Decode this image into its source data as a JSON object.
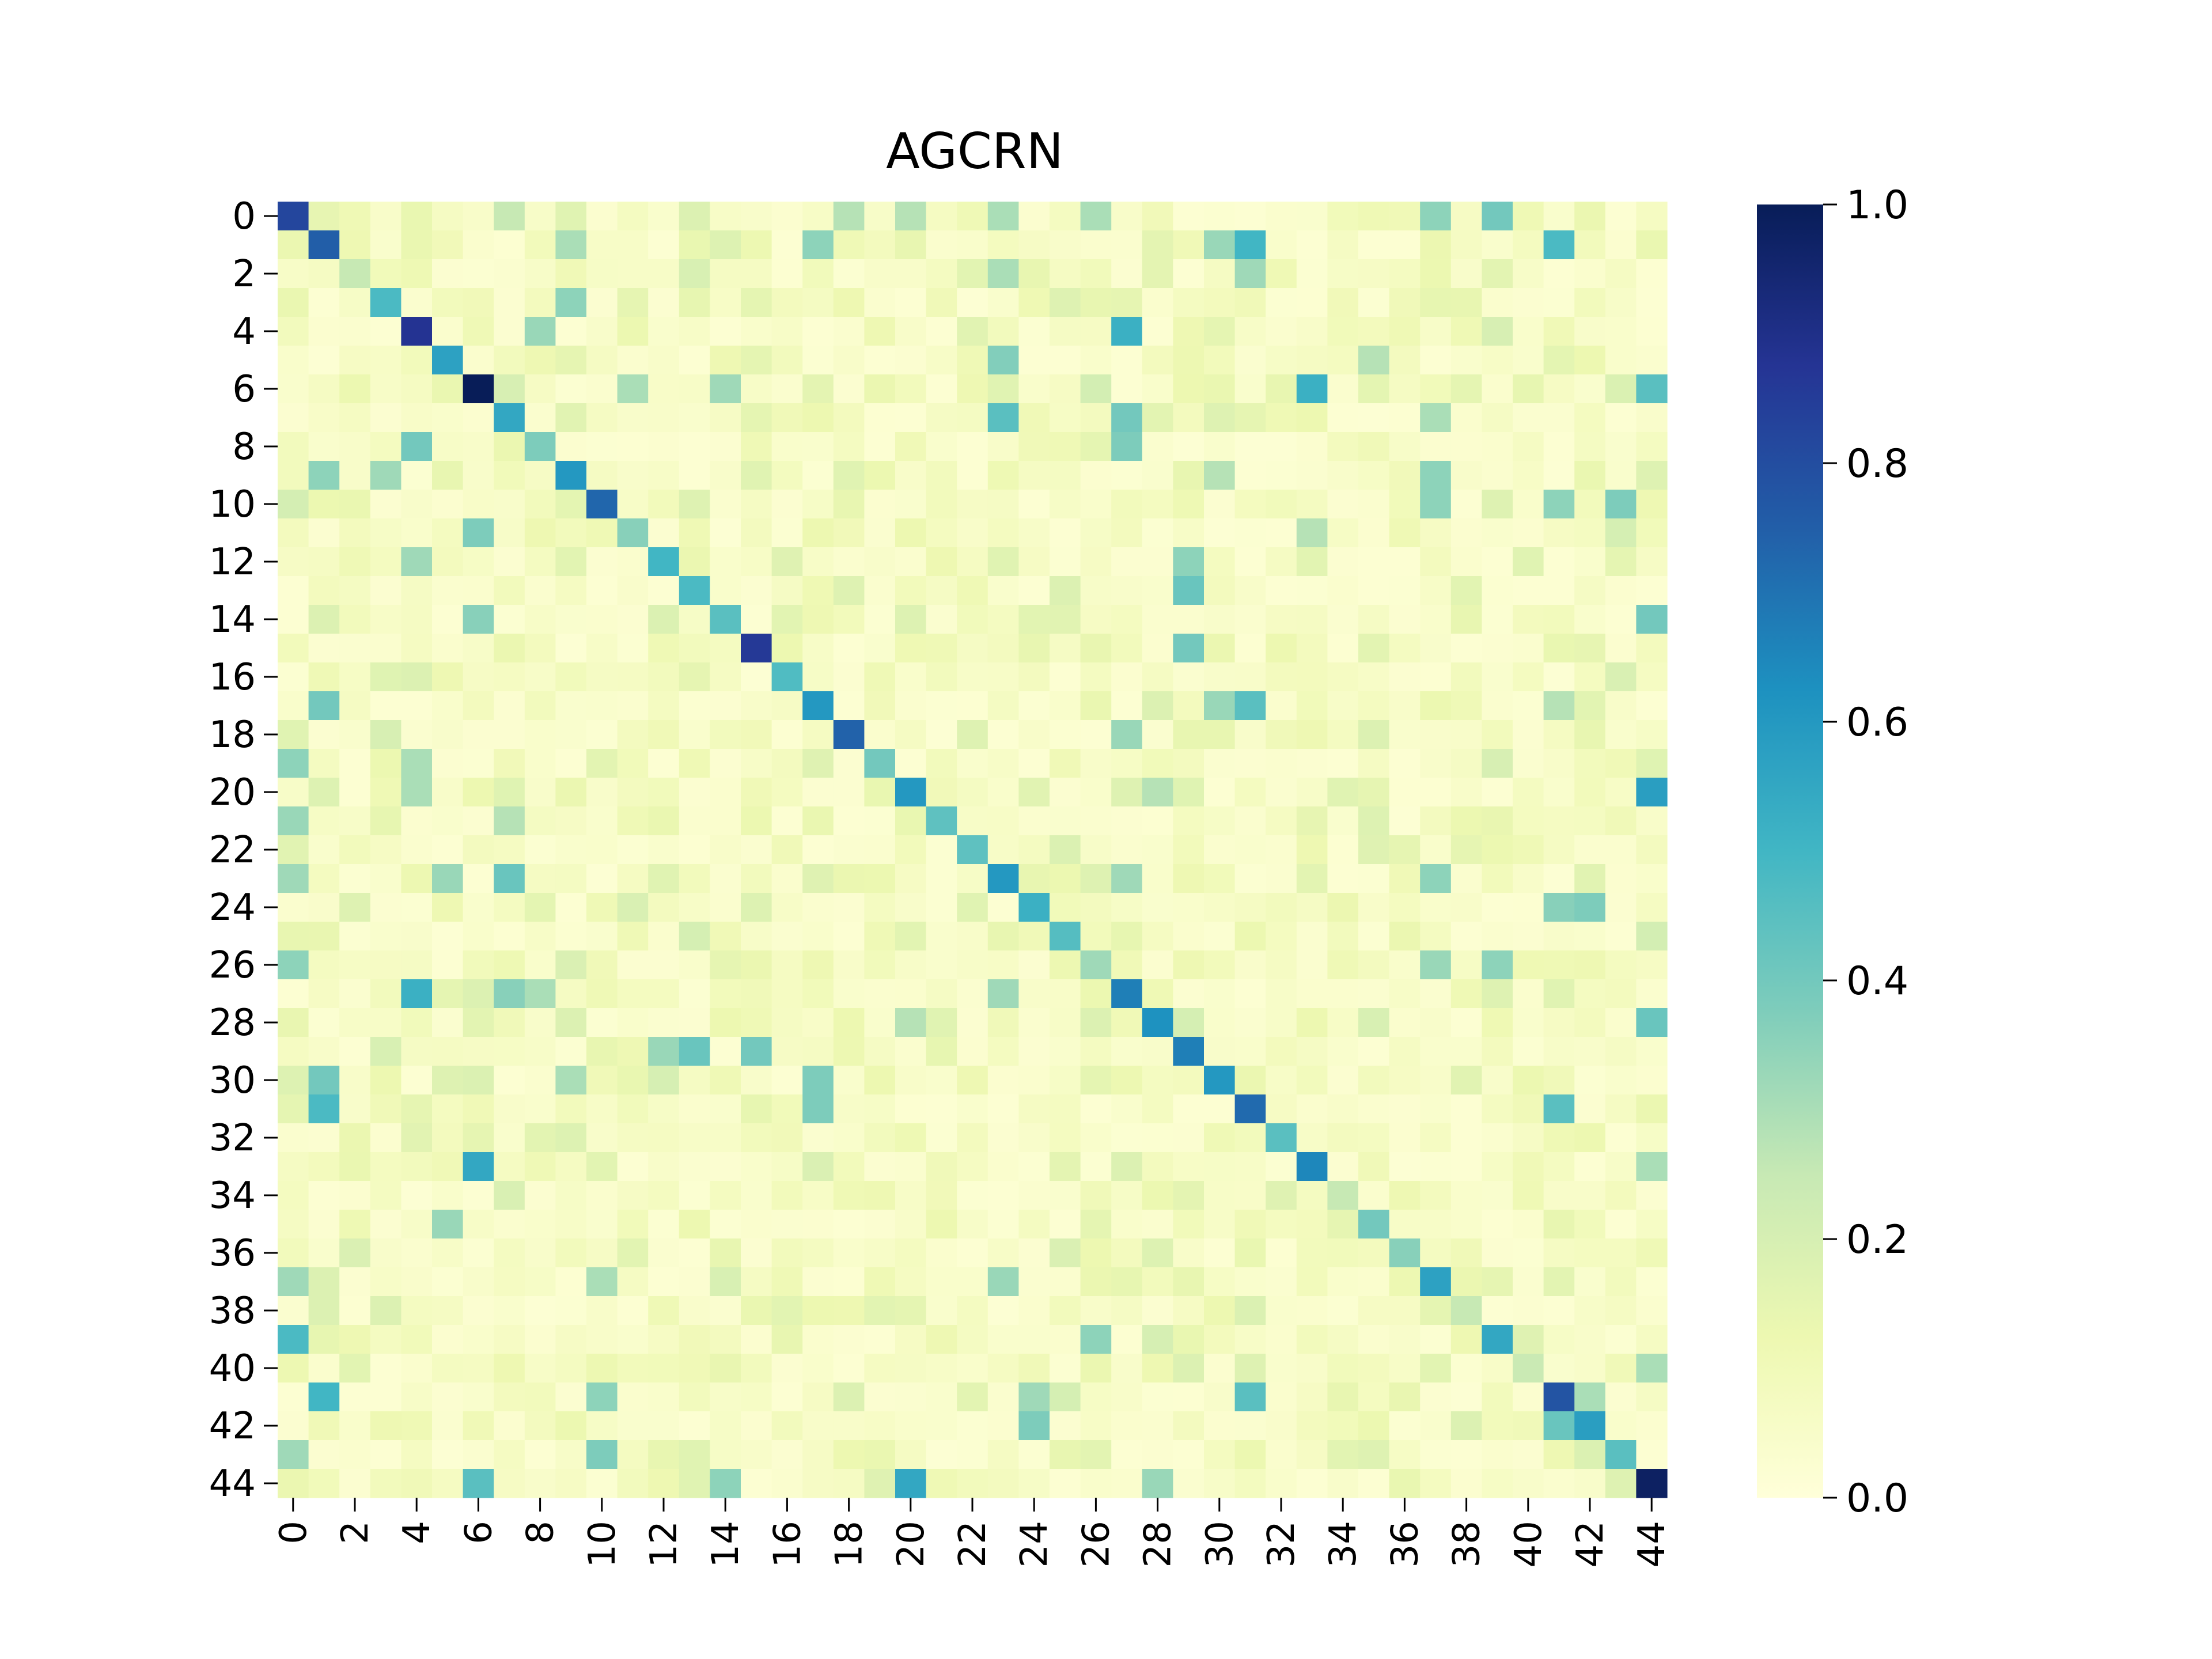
{
  "chart_data": {
    "type": "heatmap",
    "title": "AGCRN",
    "xlabel": "",
    "ylabel": "",
    "n": 45,
    "x_tick_labels": [
      "0",
      "2",
      "4",
      "6",
      "8",
      "10",
      "12",
      "14",
      "16",
      "18",
      "20",
      "22",
      "24",
      "26",
      "28",
      "30",
      "32",
      "34",
      "36",
      "38",
      "40",
      "42",
      "44"
    ],
    "y_tick_labels": [
      "0",
      "2",
      "4",
      "6",
      "8",
      "10",
      "12",
      "14",
      "16",
      "18",
      "20",
      "22",
      "24",
      "26",
      "28",
      "30",
      "32",
      "34",
      "36",
      "38",
      "40",
      "42",
      "44"
    ],
    "colorbar": {
      "min": 0.0,
      "max": 1.0,
      "tick_labels": [
        "0.0",
        "0.2",
        "0.4",
        "0.6",
        "0.8",
        "1.0"
      ],
      "colormap": "YlGnBu",
      "stops": [
        "#ffffd9",
        "#edf8b1",
        "#c7e9b4",
        "#7fcdbb",
        "#41b6c4",
        "#1d91c0",
        "#225ea8",
        "#253494",
        "#081d58"
      ]
    },
    "diagonal": [
      0.82,
      0.75,
      0.25,
      0.48,
      0.88,
      0.57,
      1.0,
      0.55,
      0.38,
      0.6,
      0.73,
      0.36,
      0.5,
      0.48,
      0.45,
      0.86,
      0.47,
      0.6,
      0.74,
      0.4,
      0.6,
      0.44,
      0.44,
      0.6,
      0.52,
      0.46,
      0.32,
      0.67,
      0.62,
      0.67,
      0.6,
      0.72,
      0.45,
      0.65,
      0.25,
      0.4,
      0.36,
      0.57,
      0.25,
      0.55,
      0.24,
      0.78,
      0.58,
      0.45,
      0.98
    ],
    "off_diagonal": [
      {
        "row": 0,
        "col": 7,
        "value": 0.25
      },
      {
        "row": 0,
        "col": 18,
        "value": 0.28
      },
      {
        "row": 0,
        "col": 20,
        "value": 0.28
      },
      {
        "row": 0,
        "col": 23,
        "value": 0.3
      },
      {
        "row": 0,
        "col": 26,
        "value": 0.3
      },
      {
        "row": 0,
        "col": 37,
        "value": 0.35
      },
      {
        "row": 0,
        "col": 39,
        "value": 0.4
      },
      {
        "row": 1,
        "col": 9,
        "value": 0.3
      },
      {
        "row": 1,
        "col": 17,
        "value": 0.35
      },
      {
        "row": 1,
        "col": 30,
        "value": 0.33
      },
      {
        "row": 1,
        "col": 31,
        "value": 0.5
      },
      {
        "row": 1,
        "col": 41,
        "value": 0.48
      },
      {
        "row": 2,
        "col": 31,
        "value": 0.32
      },
      {
        "row": 2,
        "col": 23,
        "value": 0.3
      },
      {
        "row": 3,
        "col": 9,
        "value": 0.35
      },
      {
        "row": 4,
        "col": 8,
        "value": 0.33
      },
      {
        "row": 4,
        "col": 27,
        "value": 0.52
      },
      {
        "row": 5,
        "col": 23,
        "value": 0.37
      },
      {
        "row": 5,
        "col": 35,
        "value": 0.28
      },
      {
        "row": 6,
        "col": 11,
        "value": 0.3
      },
      {
        "row": 6,
        "col": 14,
        "value": 0.32
      },
      {
        "row": 6,
        "col": 33,
        "value": 0.52
      },
      {
        "row": 6,
        "col": 44,
        "value": 0.45
      },
      {
        "row": 7,
        "col": 23,
        "value": 0.45
      },
      {
        "row": 7,
        "col": 27,
        "value": 0.4
      },
      {
        "row": 7,
        "col": 37,
        "value": 0.3
      },
      {
        "row": 8,
        "col": 4,
        "value": 0.4
      },
      {
        "row": 8,
        "col": 27,
        "value": 0.38
      },
      {
        "row": 9,
        "col": 1,
        "value": 0.35
      },
      {
        "row": 9,
        "col": 3,
        "value": 0.32
      },
      {
        "row": 9,
        "col": 30,
        "value": 0.28
      },
      {
        "row": 9,
        "col": 37,
        "value": 0.35
      },
      {
        "row": 10,
        "col": 37,
        "value": 0.35
      },
      {
        "row": 10,
        "col": 41,
        "value": 0.35
      },
      {
        "row": 10,
        "col": 43,
        "value": 0.38
      },
      {
        "row": 11,
        "col": 6,
        "value": 0.38
      },
      {
        "row": 11,
        "col": 33,
        "value": 0.28
      },
      {
        "row": 12,
        "col": 4,
        "value": 0.32
      },
      {
        "row": 12,
        "col": 29,
        "value": 0.35
      },
      {
        "row": 13,
        "col": 29,
        "value": 0.42
      },
      {
        "row": 14,
        "col": 6,
        "value": 0.36
      },
      {
        "row": 14,
        "col": 44,
        "value": 0.4
      },
      {
        "row": 15,
        "col": 29,
        "value": 0.4
      },
      {
        "row": 17,
        "col": 1,
        "value": 0.4
      },
      {
        "row": 17,
        "col": 30,
        "value": 0.33
      },
      {
        "row": 17,
        "col": 31,
        "value": 0.45
      },
      {
        "row": 17,
        "col": 41,
        "value": 0.28
      },
      {
        "row": 18,
        "col": 27,
        "value": 0.33
      },
      {
        "row": 19,
        "col": 0,
        "value": 0.35
      },
      {
        "row": 19,
        "col": 4,
        "value": 0.3
      },
      {
        "row": 20,
        "col": 4,
        "value": 0.3
      },
      {
        "row": 20,
        "col": 28,
        "value": 0.28
      },
      {
        "row": 20,
        "col": 44,
        "value": 0.58
      },
      {
        "row": 21,
        "col": 0,
        "value": 0.33
      },
      {
        "row": 21,
        "col": 7,
        "value": 0.28
      },
      {
        "row": 23,
        "col": 0,
        "value": 0.32
      },
      {
        "row": 23,
        "col": 5,
        "value": 0.33
      },
      {
        "row": 23,
        "col": 7,
        "value": 0.42
      },
      {
        "row": 23,
        "col": 27,
        "value": 0.32
      },
      {
        "row": 23,
        "col": 37,
        "value": 0.35
      },
      {
        "row": 24,
        "col": 41,
        "value": 0.36
      },
      {
        "row": 24,
        "col": 42,
        "value": 0.38
      },
      {
        "row": 26,
        "col": 0,
        "value": 0.35
      },
      {
        "row": 26,
        "col": 37,
        "value": 0.33
      },
      {
        "row": 26,
        "col": 39,
        "value": 0.35
      },
      {
        "row": 27,
        "col": 4,
        "value": 0.52
      },
      {
        "row": 27,
        "col": 7,
        "value": 0.36
      },
      {
        "row": 27,
        "col": 8,
        "value": 0.3
      },
      {
        "row": 27,
        "col": 23,
        "value": 0.32
      },
      {
        "row": 28,
        "col": 20,
        "value": 0.28
      },
      {
        "row": 28,
        "col": 44,
        "value": 0.42
      },
      {
        "row": 29,
        "col": 12,
        "value": 0.33
      },
      {
        "row": 29,
        "col": 13,
        "value": 0.42
      },
      {
        "row": 29,
        "col": 15,
        "value": 0.4
      },
      {
        "row": 30,
        "col": 1,
        "value": 0.4
      },
      {
        "row": 30,
        "col": 9,
        "value": 0.3
      },
      {
        "row": 30,
        "col": 17,
        "value": 0.38
      },
      {
        "row": 31,
        "col": 1,
        "value": 0.48
      },
      {
        "row": 31,
        "col": 17,
        "value": 0.38
      },
      {
        "row": 31,
        "col": 41,
        "value": 0.45
      },
      {
        "row": 33,
        "col": 6,
        "value": 0.55
      },
      {
        "row": 33,
        "col": 44,
        "value": 0.3
      },
      {
        "row": 35,
        "col": 5,
        "value": 0.33
      },
      {
        "row": 37,
        "col": 0,
        "value": 0.32
      },
      {
        "row": 37,
        "col": 10,
        "value": 0.3
      },
      {
        "row": 37,
        "col": 23,
        "value": 0.33
      },
      {
        "row": 39,
        "col": 0,
        "value": 0.48
      },
      {
        "row": 39,
        "col": 26,
        "value": 0.35
      },
      {
        "row": 40,
        "col": 44,
        "value": 0.3
      },
      {
        "row": 41,
        "col": 1,
        "value": 0.5
      },
      {
        "row": 41,
        "col": 10,
        "value": 0.35
      },
      {
        "row": 41,
        "col": 24,
        "value": 0.32
      },
      {
        "row": 41,
        "col": 31,
        "value": 0.45
      },
      {
        "row": 41,
        "col": 42,
        "value": 0.3
      },
      {
        "row": 42,
        "col": 24,
        "value": 0.38
      },
      {
        "row": 42,
        "col": 41,
        "value": 0.42
      },
      {
        "row": 43,
        "col": 0,
        "value": 0.32
      },
      {
        "row": 43,
        "col": 10,
        "value": 0.38
      },
      {
        "row": 44,
        "col": 6,
        "value": 0.45
      },
      {
        "row": 44,
        "col": 14,
        "value": 0.35
      },
      {
        "row": 44,
        "col": 20,
        "value": 0.55
      },
      {
        "row": 44,
        "col": 28,
        "value": 0.33
      }
    ],
    "background_range": [
      0.02,
      0.22
    ]
  }
}
